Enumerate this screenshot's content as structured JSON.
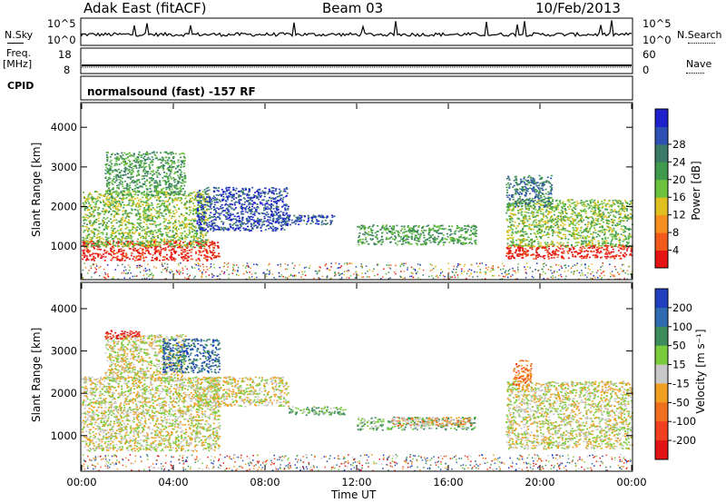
{
  "header": {
    "station": "Adak East (fitACF)",
    "beam": "Beam 03",
    "date": "10/Feb/2013"
  },
  "strips": {
    "nsky_label": "N.Sky",
    "nsky_ticks": [
      "10^5",
      "10^0"
    ],
    "nsearch_label": "N.Search",
    "nsearch_ticks": [
      "10^5",
      "10^0"
    ],
    "freq_label_top": "Freq.",
    "freq_label_bottom": "[MHz]",
    "freq_ticks": [
      "18",
      "8"
    ],
    "nave_label": "Nave",
    "nave_ticks": [
      "60",
      "0"
    ],
    "cpid_label": "CPID",
    "cpid_text": "normalsound (fast) -157 RF"
  },
  "chart_data": [
    {
      "type": "heatmap",
      "parameter": "power",
      "ylabel": "Slant Range [km]",
      "xlabel": "Time UT",
      "x_ticks": [
        "00:00",
        "04:00",
        "08:00",
        "12:00",
        "16:00",
        "20:00",
        "00:00"
      ],
      "xlim_hours": [
        0,
        24
      ],
      "y_ticks": [
        1000,
        2000,
        3000,
        4000
      ],
      "ylim": [
        180,
        4600
      ],
      "colorbar": {
        "label": "Power [dB]",
        "ticks": [
          "4",
          "8",
          "12",
          "16",
          "20",
          "24",
          "28"
        ],
        "colors": [
          "#1f1fcc",
          "#2e4fb3",
          "#3b7a66",
          "#3f9a4d",
          "#6cc23c",
          "#e0c020",
          "#f59020",
          "#f25a1c",
          "#e51414"
        ]
      },
      "regions": [
        {
          "t0": 0.0,
          "t1": 6.0,
          "r0": 650,
          "r1": 1150,
          "level": 8
        },
        {
          "t0": 0.0,
          "t1": 5.5,
          "r0": 1000,
          "r1": 2400,
          "level": 4
        },
        {
          "t0": 1.0,
          "t1": 4.5,
          "r0": 2300,
          "r1": 3400,
          "level": 3
        },
        {
          "t0": 5.0,
          "t1": 9.0,
          "r0": 1400,
          "r1": 2500,
          "level": 1
        },
        {
          "t0": 8.5,
          "t1": 11.0,
          "r0": 1550,
          "r1": 1800,
          "level": 1
        },
        {
          "t0": 12.0,
          "t1": 17.2,
          "r0": 1050,
          "r1": 1550,
          "level": 3
        },
        {
          "t0": 18.5,
          "t1": 24.0,
          "r0": 700,
          "r1": 1050,
          "level": 8
        },
        {
          "t0": 18.5,
          "t1": 24.0,
          "r0": 1000,
          "r1": 2200,
          "level": 4
        },
        {
          "t0": 18.5,
          "t1": 20.5,
          "r0": 2000,
          "r1": 2800,
          "level": 2
        }
      ]
    },
    {
      "type": "heatmap",
      "parameter": "velocity",
      "ylabel": "Slant Range [km]",
      "xlabel": "Time UT",
      "x_ticks": [
        "00:00",
        "04:00",
        "08:00",
        "12:00",
        "16:00",
        "20:00",
        "00:00"
      ],
      "xlim_hours": [
        0,
        24
      ],
      "y_ticks": [
        1000,
        2000,
        3000,
        4000
      ],
      "ylim": [
        180,
        4600
      ],
      "colorbar": {
        "label": "Velocity [m s⁻¹]",
        "ticks": [
          "200",
          "100",
          "50",
          "15",
          "-15",
          "-50",
          "-100",
          "-200"
        ],
        "colors": [
          "#1f3fbf",
          "#2e6bb0",
          "#3c8c5c",
          "#7acc3c",
          "#c8c8c8",
          "#f0a020",
          "#f07020",
          "#f04020",
          "#e01414"
        ]
      },
      "regions": [
        {
          "t0": 0.0,
          "t1": 6.0,
          "r0": 650,
          "r1": 2400,
          "level": 4
        },
        {
          "t0": 1.0,
          "t1": 4.5,
          "r0": 2300,
          "r1": 3400,
          "level": 4
        },
        {
          "t0": 1.0,
          "t1": 2.5,
          "r0": 3300,
          "r1": 3500,
          "level": 8
        },
        {
          "t0": 3.5,
          "t1": 6.0,
          "r0": 2500,
          "r1": 3300,
          "level": 1
        },
        {
          "t0": 5.0,
          "t1": 9.0,
          "r0": 1700,
          "r1": 2400,
          "level": 4
        },
        {
          "t0": 9.0,
          "t1": 11.5,
          "r0": 1500,
          "r1": 1700,
          "level": 3
        },
        {
          "t0": 12.0,
          "t1": 17.2,
          "r0": 1150,
          "r1": 1450,
          "level": 3
        },
        {
          "t0": 13.5,
          "t1": 17.0,
          "r0": 1250,
          "r1": 1450,
          "level": 5
        },
        {
          "t0": 18.5,
          "t1": 24.0,
          "r0": 700,
          "r1": 2300,
          "level": 4
        },
        {
          "t0": 18.8,
          "t1": 19.6,
          "r0": 2200,
          "r1": 2800,
          "level": 6
        }
      ]
    }
  ]
}
